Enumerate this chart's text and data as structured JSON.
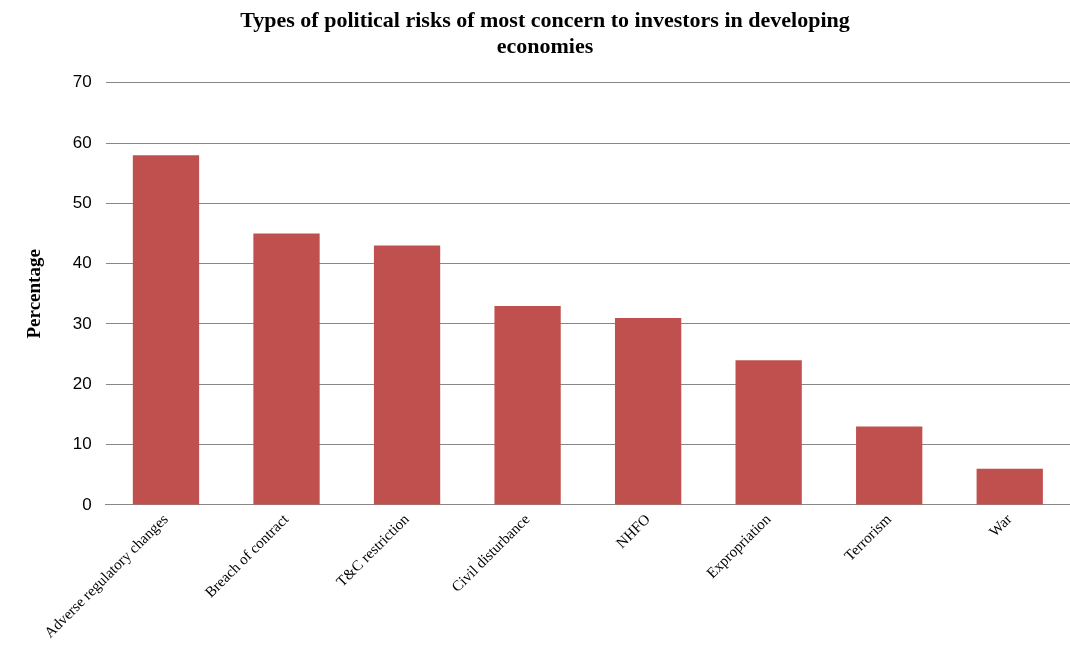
{
  "chart_data": {
    "type": "bar",
    "title": "Types of political risks of most concern to investors in developing economies",
    "ylabel": "Percentage",
    "categories": [
      "Adverse regulatory changes",
      "Breach of contract",
      "T&C restriction",
      "Civil disturbance",
      "NHFO",
      "Expropriation",
      "Terrorism",
      "War"
    ],
    "values": [
      58,
      45,
      43,
      33,
      31,
      24,
      13,
      6
    ],
    "color": "#c0504d",
    "ylim": [
      0,
      70
    ],
    "yticks": [
      0,
      10,
      20,
      30,
      40,
      50,
      60,
      70
    ],
    "grid": "y",
    "legend": false
  }
}
